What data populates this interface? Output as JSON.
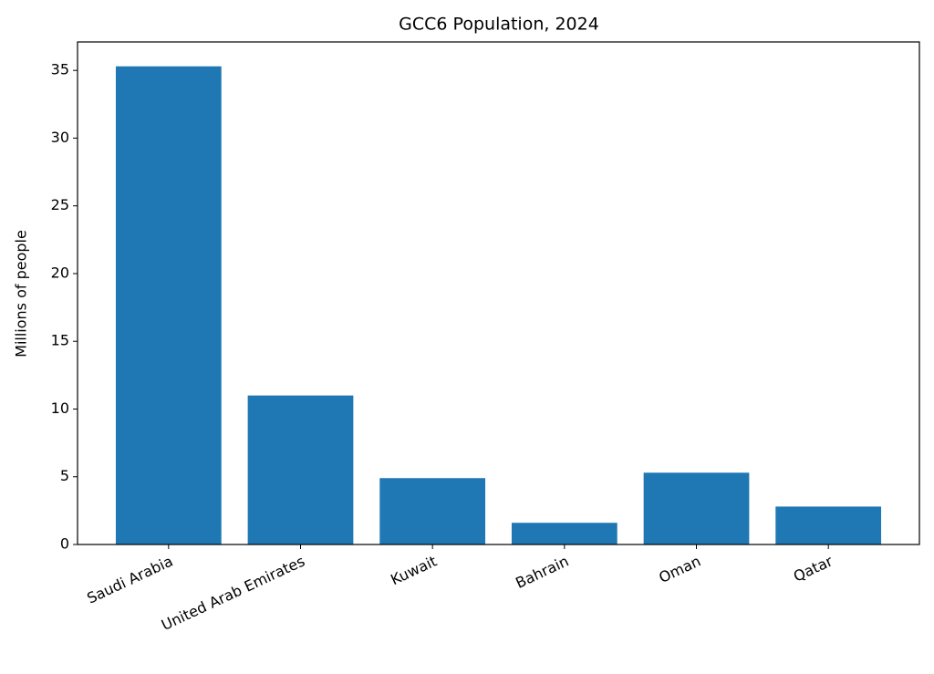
{
  "chart_data": {
    "type": "bar",
    "title": "GCC6 Population, 2024",
    "y_label": "Millions of people",
    "categories": [
      "Saudi Arabia",
      "United Arab Emirates",
      "Kuwait",
      "Bahrain",
      "Oman",
      "Qatar"
    ],
    "values": [
      35.3,
      11.0,
      4.9,
      1.6,
      5.3,
      2.8
    ],
    "color": "#1f77b4",
    "ylim": [
      0,
      37.1
    ],
    "yticks": [
      0,
      5,
      10,
      15,
      20,
      25,
      30,
      35
    ],
    "grid": false
  }
}
